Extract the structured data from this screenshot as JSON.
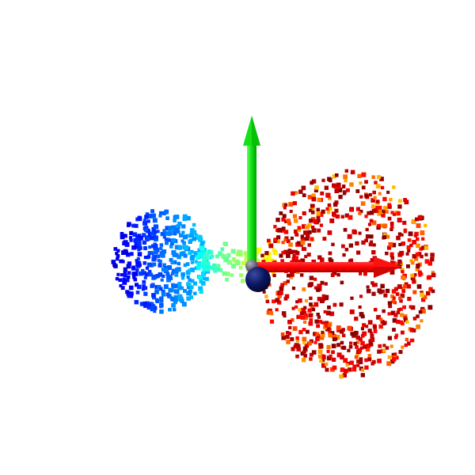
{
  "scene": {
    "background": "#ffffff",
    "point_cloud": {
      "colormap": "jet",
      "point_shape": "square",
      "groups": [
        {
          "name": "left-blob-blue",
          "color_range": [
            "#0000c8",
            "#00d0ff"
          ]
        },
        {
          "name": "middle-bridge-green",
          "color_range": [
            "#00ffb0",
            "#d8ff00"
          ]
        },
        {
          "name": "right-ring-red-orange",
          "color_range": [
            "#ffe000",
            "#e00000"
          ]
        }
      ]
    },
    "axes": [
      {
        "name": "x-axis-arrow",
        "color": "#ff0000",
        "direction": "right"
      },
      {
        "name": "y-axis-arrow",
        "color": "#00dd00",
        "direction": "up"
      }
    ],
    "origin_marker": {
      "color": "#0a1560",
      "shape": "sphere"
    },
    "origin_ball_grey": {
      "color": "#606070",
      "shape": "sphere"
    }
  }
}
